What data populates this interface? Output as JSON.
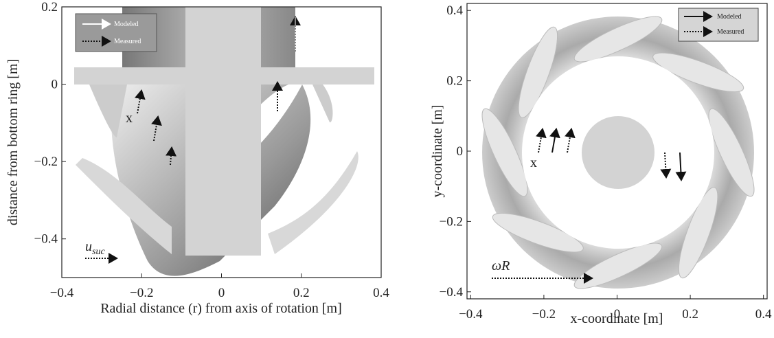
{
  "panels": [
    {
      "xlabel": "Radial distance (r) from axis of rotation [m]",
      "ylabel": "distance from bottom ring [m]",
      "xlim": [
        -0.4,
        0.4
      ],
      "ylim": [
        -0.5,
        0.2
      ],
      "xticks": [
        {
          "value": -0.4,
          "label": "−0.4"
        },
        {
          "value": -0.2,
          "label": "−0.2"
        },
        0,
        0.2,
        0.4
      ],
      "yticks": [
        0.2,
        0,
        {
          "value": -0.2,
          "label": "−0.2"
        },
        {
          "value": -0.4,
          "label": "−0.4"
        }
      ],
      "legend": [
        "Modeled",
        "Measured"
      ],
      "annotations": {
        "point": "x",
        "velocity": {
          "symbol": "u",
          "subscript": "suc"
        }
      }
    },
    {
      "xlabel": "x-coordinate [m]",
      "ylabel": "y-coordinate [m]",
      "xlim": [
        -0.41,
        0.41
      ],
      "ylim": [
        -0.42,
        0.42
      ],
      "xticks": [
        {
          "value": -0.4,
          "label": "−0.4"
        },
        {
          "value": -0.2,
          "label": "−0.2"
        },
        0,
        0.2,
        0.4
      ],
      "yticks": [
        0.4,
        0.2,
        0,
        {
          "value": -0.2,
          "label": "−0.2"
        },
        {
          "value": -0.4,
          "label": "−0.4"
        }
      ],
      "legend": [
        "Modeled",
        "Measured"
      ],
      "annotations": {
        "point": "x",
        "velocity": "ωR"
      }
    }
  ]
}
